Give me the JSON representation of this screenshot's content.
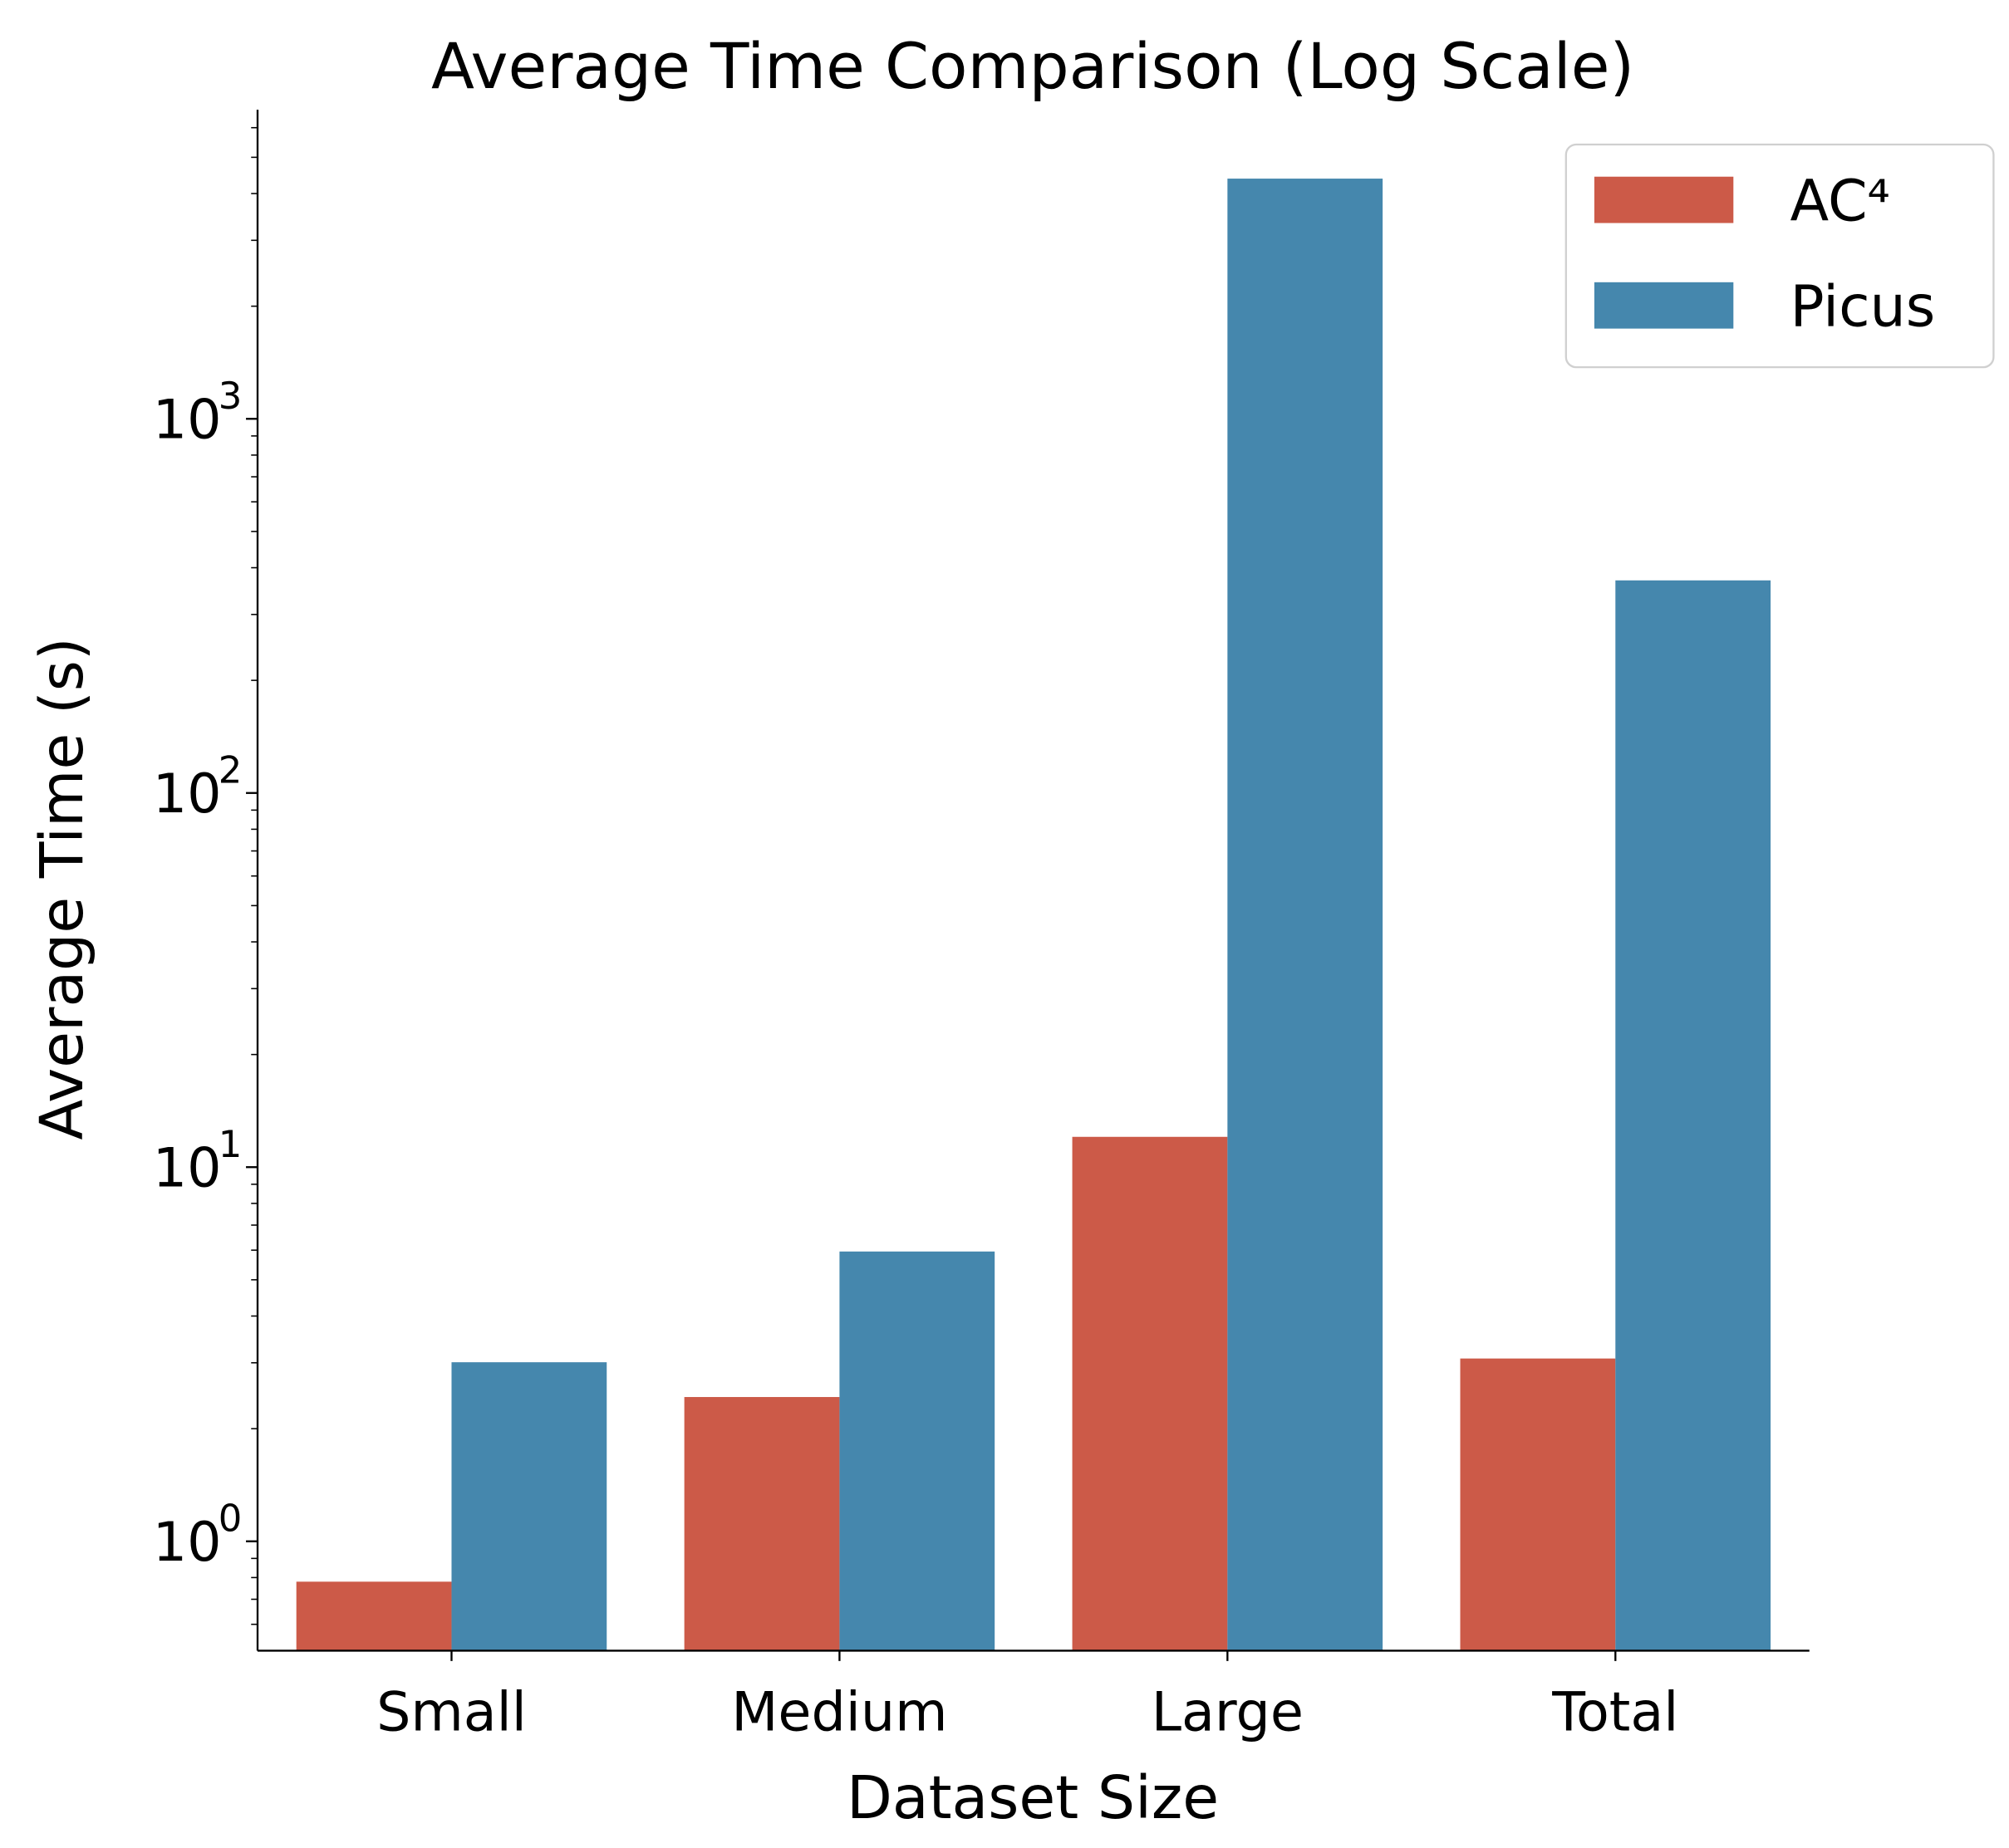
{
  "chart_data": {
    "type": "bar",
    "title": "Average Time Comparison (Log Scale)",
    "xlabel": "Dataset Size",
    "ylabel": "Average Time (s)",
    "yscale": "log",
    "ylim": [
      0.51,
      6700
    ],
    "yticks": [
      {
        "value": 1,
        "base": "10",
        "exp": "0"
      },
      {
        "value": 10,
        "base": "10",
        "exp": "1"
      },
      {
        "value": 100,
        "base": "10",
        "exp": "2"
      },
      {
        "value": 1000,
        "base": "10",
        "exp": "3"
      }
    ],
    "categories": [
      "Small",
      "Medium",
      "Large",
      "Total"
    ],
    "series": [
      {
        "name": "AC⁴",
        "color": "#cc5a48",
        "values": [
          0.78,
          2.43,
          12.05,
          3.08
        ]
      },
      {
        "name": "Picus",
        "color": "#4587ad",
        "values": [
          3.01,
          5.95,
          4385,
          370
        ]
      }
    ],
    "legend_placement": "top-right",
    "grid": false
  }
}
